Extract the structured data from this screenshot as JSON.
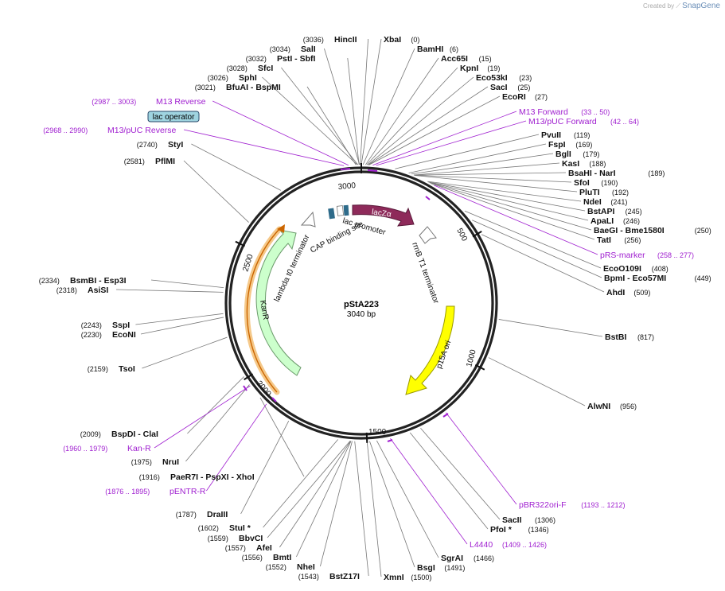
{
  "credit": {
    "prefix": "Created by",
    "brand": "SnapGene"
  },
  "plasmid": {
    "name": "pStA223",
    "size_label": "3040 bp",
    "length": 3040
  },
  "ticks": [
    "3000",
    "500",
    "1000",
    "1500",
    "2000",
    "2500"
  ],
  "enzymes_right": [
    {
      "name": "XbaI",
      "pos": "(0)"
    },
    {
      "name": "BamHI",
      "pos": "(6)"
    },
    {
      "name": "Acc65I",
      "pos": "(15)"
    },
    {
      "name": "KpnI",
      "pos": "(19)"
    },
    {
      "name": "Eco53kI",
      "pos": "(23)"
    },
    {
      "name": "SacI",
      "pos": "(25)"
    },
    {
      "name": "EcoRI",
      "pos": "(27)"
    },
    {
      "name": "PvuII",
      "pos": "(119)"
    },
    {
      "name": "FspI",
      "pos": "(169)"
    },
    {
      "name": "BglI",
      "pos": "(179)"
    },
    {
      "name": "KasI",
      "pos": "(188)"
    },
    {
      "name": "BsaHI  -  NarI",
      "pos": "(189)"
    },
    {
      "name": "SfoI",
      "pos": "(190)"
    },
    {
      "name": "PluTI",
      "pos": "(192)"
    },
    {
      "name": "NdeI",
      "pos": "(241)"
    },
    {
      "name": "BstAPI",
      "pos": "(245)"
    },
    {
      "name": "ApaLI",
      "pos": "(246)"
    },
    {
      "name": "BaeGI  -  Bme1580I",
      "pos": "(250)"
    },
    {
      "name": "TatI",
      "pos": "(256)"
    },
    {
      "name": "EcoO109I",
      "pos": "(408)"
    },
    {
      "name": "BpmI  -  Eco57MI",
      "pos": "(449)"
    },
    {
      "name": "AhdI",
      "pos": "(509)"
    },
    {
      "name": "BstBI",
      "pos": "(817)"
    },
    {
      "name": "AlwNI",
      "pos": "(956)"
    },
    {
      "name": "SacII",
      "pos": "(1306)"
    },
    {
      "name": "PfoI *",
      "pos": "(1346)"
    },
    {
      "name": "SgrAI",
      "pos": "(1466)"
    },
    {
      "name": "BsgI",
      "pos": "(1491)"
    },
    {
      "name": "XmnI",
      "pos": "(1500)"
    }
  ],
  "enzymes_left": [
    {
      "name": "HincII",
      "pos": "(3036)"
    },
    {
      "name": "SalI",
      "pos": "(3034)"
    },
    {
      "name": "PstI  -  SbfI",
      "pos": "(3032)"
    },
    {
      "name": "SfcI",
      "pos": "(3028)"
    },
    {
      "name": "SphI",
      "pos": "(3026)"
    },
    {
      "name": "BfuAI  -  BspMI",
      "pos": "(3021)"
    },
    {
      "name": "StyI",
      "pos": "(2740)"
    },
    {
      "name": "PflMI",
      "pos": "(2581)"
    },
    {
      "name": "BsmBI  -  Esp3I",
      "pos": "(2334)"
    },
    {
      "name": "AsiSI",
      "pos": "(2318)"
    },
    {
      "name": "SspI",
      "pos": "(2243)"
    },
    {
      "name": "EcoNI",
      "pos": "(2230)"
    },
    {
      "name": "TsoI",
      "pos": "(2159)"
    },
    {
      "name": "BspDI  -  ClaI",
      "pos": "(2009)"
    },
    {
      "name": "NruI",
      "pos": "(1975)"
    },
    {
      "name": "PaeR7I  -  PspXI  -  XhoI",
      "pos": "(1916)"
    },
    {
      "name": "DraIII",
      "pos": "(1787)"
    },
    {
      "name": "StuI *",
      "pos": "(1602)"
    },
    {
      "name": "BbvCI",
      "pos": "(1559)"
    },
    {
      "name": "AfeI",
      "pos": "(1557)"
    },
    {
      "name": "BmtI",
      "pos": "(1556)"
    },
    {
      "name": "NheI",
      "pos": "(1552)"
    },
    {
      "name": "BstZ17I",
      "pos": "(1543)"
    }
  ],
  "primers_right": [
    {
      "name": "M13 Forward",
      "pos": "(33 .. 50)"
    },
    {
      "name": "M13/pUC Forward",
      "pos": "(42 .. 64)"
    },
    {
      "name": "pRS-marker",
      "pos": "(258 .. 277)"
    },
    {
      "name": "pBR322ori-F",
      "pos": "(1193 .. 1212)"
    },
    {
      "name": "L4440",
      "pos": "(1409 .. 1426)"
    }
  ],
  "primers_left": [
    {
      "name": "M13 Reverse",
      "pos": "(2987 .. 3003)"
    },
    {
      "name": "M13/pUC Reverse",
      "pos": "(2968 .. 2990)"
    },
    {
      "name": "Kan-R",
      "pos": "(1960 .. 1979)"
    },
    {
      "name": "pENTR-R",
      "pos": "(1876 .. 1895)"
    }
  ],
  "boxed_label": "lac operator",
  "features": {
    "lacZa": "lacZα",
    "rrnB": "rrnB T1 terminator",
    "p15A": "p15A ori",
    "kanR": "KanR",
    "lambda": "lambda t0 terminator",
    "lacPromoter": "lac promoter",
    "cap": "CAP binding site"
  },
  "colors": {
    "lacZa": "#8e2a5a",
    "p15A": "#ffff00",
    "kanR": "#ccffcc",
    "promoter_box": "#2e6b8a",
    "primer": "#a020d0",
    "boxed_fill": "#9fd4e0"
  }
}
